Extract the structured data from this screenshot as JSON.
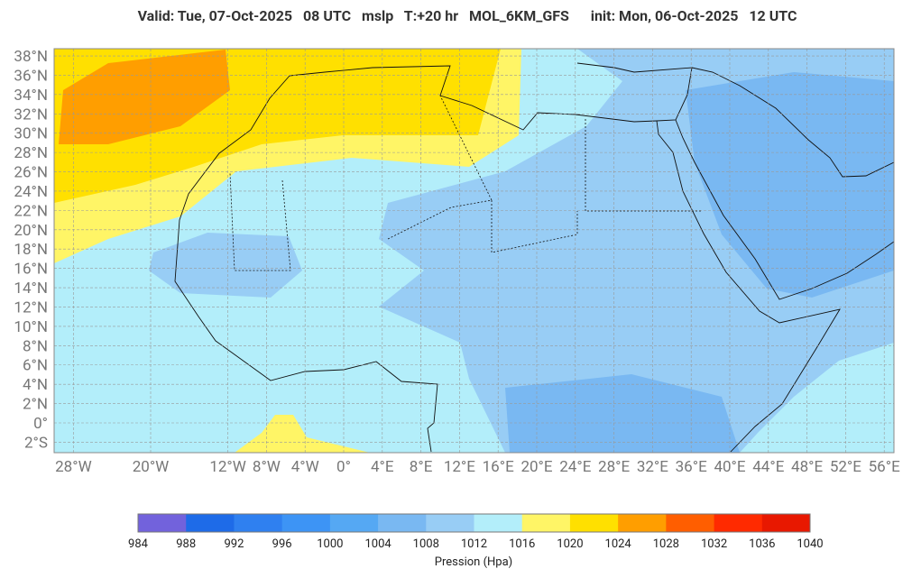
{
  "header": {
    "title": "Valid: Tue, 07-Oct-2025   08 UTC   mslp   T:+20 hr   MOL_6KM_GFS      init: Mon, 06-Oct-2025   12 UTC"
  },
  "map": {
    "lat_labels": [
      {
        "value": 38,
        "label": "38°N"
      },
      {
        "value": 36,
        "label": "36°N"
      },
      {
        "value": 34,
        "label": "34°N"
      },
      {
        "value": 32,
        "label": "32°N"
      },
      {
        "value": 30,
        "label": "30°N"
      },
      {
        "value": 28,
        "label": "28°N"
      },
      {
        "value": 26,
        "label": "26°N"
      },
      {
        "value": 24,
        "label": "24°N"
      },
      {
        "value": 22,
        "label": "22°N"
      },
      {
        "value": 20,
        "label": "20°N"
      },
      {
        "value": 18,
        "label": "18°N"
      },
      {
        "value": 16,
        "label": "16°N"
      },
      {
        "value": 14,
        "label": "14°N"
      },
      {
        "value": 12,
        "label": "12°N"
      },
      {
        "value": 10,
        "label": "10°N"
      },
      {
        "value": 8,
        "label": "8°N"
      },
      {
        "value": 6,
        "label": "6°N"
      },
      {
        "value": 4,
        "label": "4°N"
      },
      {
        "value": 2,
        "label": "2°N"
      },
      {
        "value": 0,
        "label": "0°"
      },
      {
        "value": -2,
        "label": "2°S"
      }
    ],
    "lon_labels": [
      {
        "value": -28,
        "label": "28°W"
      },
      {
        "value": -20,
        "label": "20°W"
      },
      {
        "value": -12,
        "label": "12°W"
      },
      {
        "value": -8,
        "label": "8°W"
      },
      {
        "value": -4,
        "label": "4°W"
      },
      {
        "value": 0,
        "label": "0°"
      },
      {
        "value": 4,
        "label": "4°E"
      },
      {
        "value": 8,
        "label": "8°E"
      },
      {
        "value": 12,
        "label": "12°E"
      },
      {
        "value": 16,
        "label": "16°E"
      },
      {
        "value": 20,
        "label": "20°E"
      },
      {
        "value": 24,
        "label": "24°E"
      },
      {
        "value": 28,
        "label": "28°E"
      },
      {
        "value": 32,
        "label": "32°E"
      },
      {
        "value": 36,
        "label": "36°E"
      },
      {
        "value": 40,
        "label": "40°E"
      },
      {
        "value": 44,
        "label": "44°E"
      },
      {
        "value": 48,
        "label": "48°E"
      },
      {
        "value": 52,
        "label": "52°E"
      },
      {
        "value": 56,
        "label": "56°E"
      }
    ]
  },
  "colorbar": {
    "ticks": [
      984,
      988,
      992,
      996,
      1000,
      1004,
      1008,
      1012,
      1016,
      1020,
      1024,
      1028,
      1032,
      1036,
      1040
    ],
    "colors": [
      "#7262dc",
      "#1e6be8",
      "#2f80f0",
      "#3d94f5",
      "#55a8f3",
      "#79b8f2",
      "#98cdf5",
      "#b3eefa",
      "#fff566",
      "#ffe000",
      "#ff9e00",
      "#ff5e00",
      "#ff2a00",
      "#e81800"
    ],
    "label": "Pression (Hpa)"
  }
}
